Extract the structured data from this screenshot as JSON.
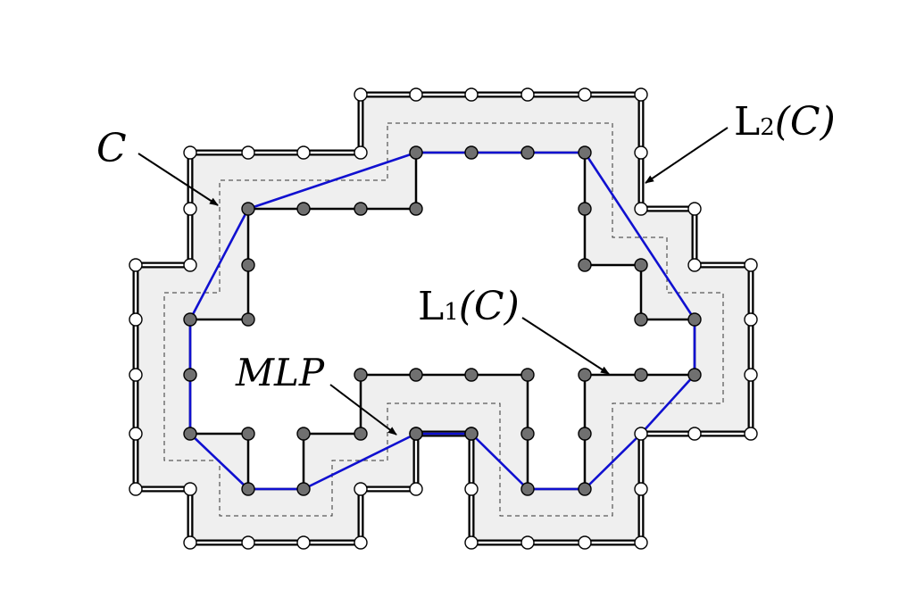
{
  "labels": {
    "contour": "C",
    "l2_prefix": "L",
    "l2_sub": "2",
    "l2_arg": "(C)",
    "l1_prefix": "L",
    "l1_sub": "1",
    "l1_arg": "(C)",
    "mlp": "MLP"
  },
  "colors": {
    "band_fill": "#efefef",
    "mlp_line": "#1010d0",
    "inner_node_fill": "#707070",
    "outer_node_fill": "#ffffff",
    "stroke": "#000000"
  }
}
